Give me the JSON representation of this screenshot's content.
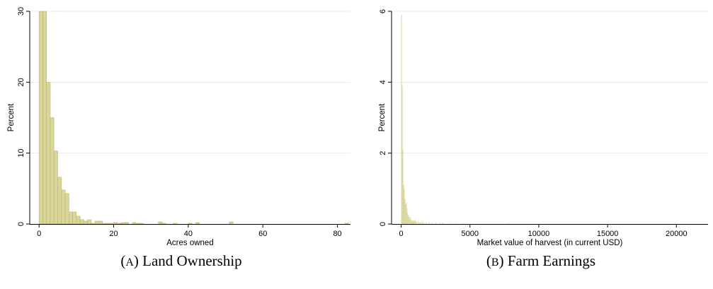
{
  "chart_data": [
    {
      "type": "bar",
      "panel": "A",
      "caption": "(A) Land Ownership",
      "caption_prefix": "(",
      "caption_letter": "A",
      "caption_suffix": ") Land Ownership",
      "xlabel": "Acres owned",
      "ylabel": "Percent",
      "xlim": [
        -2.5,
        83.5
      ],
      "ylim": [
        0,
        30
      ],
      "xticks": [
        0,
        20,
        40,
        60,
        80
      ],
      "yticks": [
        0,
        10,
        20,
        30
      ],
      "grid": true,
      "bin_width": 1,
      "bins": [
        {
          "x": 0,
          "y": 30.0
        },
        {
          "x": 1,
          "y": 30.0
        },
        {
          "x": 2,
          "y": 20.0
        },
        {
          "x": 3,
          "y": 15.0
        },
        {
          "x": 4,
          "y": 10.3
        },
        {
          "x": 5,
          "y": 6.6
        },
        {
          "x": 6,
          "y": 4.8
        },
        {
          "x": 7,
          "y": 4.3
        },
        {
          "x": 8,
          "y": 1.7
        },
        {
          "x": 9,
          "y": 1.7
        },
        {
          "x": 10,
          "y": 1.1
        },
        {
          "x": 11,
          "y": 0.6
        },
        {
          "x": 12,
          "y": 0.4
        },
        {
          "x": 13,
          "y": 0.6
        },
        {
          "x": 14,
          "y": 0.1
        },
        {
          "x": 15,
          "y": 0.4
        },
        {
          "x": 16,
          "y": 0.4
        },
        {
          "x": 17,
          "y": 0.1
        },
        {
          "x": 18,
          "y": 0.1
        },
        {
          "x": 19,
          "y": 0.1
        },
        {
          "x": 20,
          "y": 0.2
        },
        {
          "x": 21,
          "y": 0.1
        },
        {
          "x": 22,
          "y": 0.2
        },
        {
          "x": 23,
          "y": 0.2
        },
        {
          "x": 25,
          "y": 0.2
        },
        {
          "x": 26,
          "y": 0.1
        },
        {
          "x": 27,
          "y": 0.1
        },
        {
          "x": 32,
          "y": 0.3
        },
        {
          "x": 33,
          "y": 0.1
        },
        {
          "x": 36,
          "y": 0.1
        },
        {
          "x": 40,
          "y": 0.1
        },
        {
          "x": 42,
          "y": 0.2
        },
        {
          "x": 51,
          "y": 0.3
        },
        {
          "x": 82,
          "y": 0.1
        }
      ]
    },
    {
      "type": "bar",
      "panel": "B",
      "caption": "(B) Farm Earnings",
      "caption_prefix": "(",
      "caption_letter": "B",
      "caption_suffix": ") Farm Earnings",
      "xlabel": "Market value of harvest (in current USD)",
      "ylabel": "Percent",
      "xlim": [
        -700,
        22300
      ],
      "ylim": [
        0,
        6
      ],
      "xticks": [
        0,
        5000,
        10000,
        15000,
        20000
      ],
      "yticks": [
        0,
        2,
        4,
        6
      ],
      "grid": true,
      "bin_width": 50,
      "bins": [
        {
          "x": 0,
          "y": 5.9
        },
        {
          "x": 50,
          "y": 3.9
        },
        {
          "x": 100,
          "y": 2.1
        },
        {
          "x": 150,
          "y": 1.1
        },
        {
          "x": 200,
          "y": 1.0
        },
        {
          "x": 250,
          "y": 0.7
        },
        {
          "x": 300,
          "y": 0.55
        },
        {
          "x": 350,
          "y": 0.6
        },
        {
          "x": 400,
          "y": 0.45
        },
        {
          "x": 450,
          "y": 0.3
        },
        {
          "x": 500,
          "y": 0.25
        },
        {
          "x": 550,
          "y": 0.2
        },
        {
          "x": 600,
          "y": 0.15
        },
        {
          "x": 650,
          "y": 0.2
        },
        {
          "x": 700,
          "y": 0.1
        },
        {
          "x": 750,
          "y": 0.12
        },
        {
          "x": 800,
          "y": 0.1
        },
        {
          "x": 850,
          "y": 0.08
        },
        {
          "x": 900,
          "y": 0.1
        },
        {
          "x": 950,
          "y": 0.07
        },
        {
          "x": 1000,
          "y": 0.12
        },
        {
          "x": 1100,
          "y": 0.06
        },
        {
          "x": 1200,
          "y": 0.08
        },
        {
          "x": 1300,
          "y": 0.05
        },
        {
          "x": 1400,
          "y": 0.05
        },
        {
          "x": 1500,
          "y": 0.07
        },
        {
          "x": 1600,
          "y": 0.04
        },
        {
          "x": 1800,
          "y": 0.05
        },
        {
          "x": 2000,
          "y": 0.06
        },
        {
          "x": 2200,
          "y": 0.03
        },
        {
          "x": 2500,
          "y": 0.04
        },
        {
          "x": 2800,
          "y": 0.03
        },
        {
          "x": 3000,
          "y": 0.04
        },
        {
          "x": 3500,
          "y": 0.02
        },
        {
          "x": 4000,
          "y": 0.02
        },
        {
          "x": 4500,
          "y": 0.02
        },
        {
          "x": 5000,
          "y": 0.02
        },
        {
          "x": 6000,
          "y": 0.01
        },
        {
          "x": 7000,
          "y": 0.01
        },
        {
          "x": 7800,
          "y": 0.02
        },
        {
          "x": 9000,
          "y": 0.01
        },
        {
          "x": 10500,
          "y": 0.01
        },
        {
          "x": 12000,
          "y": 0.01
        },
        {
          "x": 15000,
          "y": 0.01
        },
        {
          "x": 21500,
          "y": 0.01
        }
      ]
    }
  ],
  "colors": {
    "bar_fill": "#d9d59b",
    "bar_stroke": "#bdb76b",
    "grid": "#ebebeb",
    "axis": "#000000"
  }
}
